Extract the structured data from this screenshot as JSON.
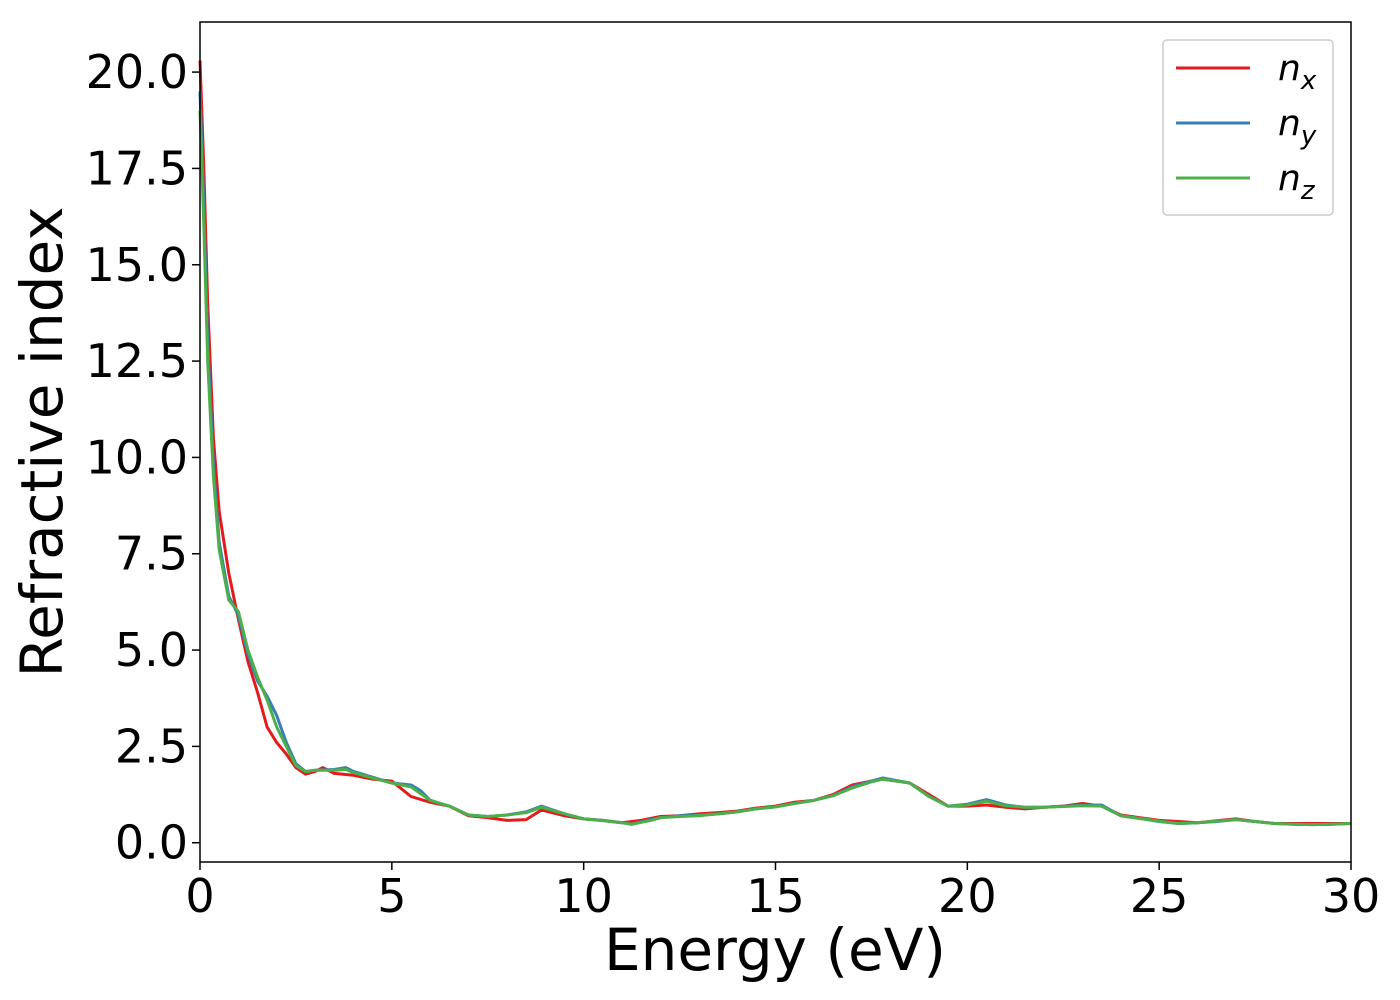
{
  "chart_data": {
    "type": "line",
    "xlabel": "Energy (eV)",
    "ylabel": "Refractive index",
    "xlim": [
      0,
      30
    ],
    "ylim": [
      -0.5,
      21.3
    ],
    "xticks": [
      0,
      5,
      10,
      15,
      20,
      25,
      30
    ],
    "xtick_labels": [
      "0",
      "5",
      "10",
      "15",
      "20",
      "25",
      "30"
    ],
    "yticks": [
      0,
      2.5,
      5,
      7.5,
      10,
      12.5,
      15,
      17.5,
      20
    ],
    "ytick_labels": [
      "0.0",
      "2.5",
      "5.0",
      "7.5",
      "10.0",
      "12.5",
      "15.0",
      "17.5",
      "20.0"
    ],
    "grid": false,
    "legend_position": "top-right",
    "series": [
      {
        "name": "n",
        "subscript": "x",
        "color": "#e41a1c",
        "points": [
          [
            0,
            20.3
          ],
          [
            0.1,
            17.5
          ],
          [
            0.2,
            14.0
          ],
          [
            0.35,
            10.5
          ],
          [
            0.5,
            8.6
          ],
          [
            0.75,
            7.0
          ],
          [
            1.0,
            5.8
          ],
          [
            1.25,
            4.7
          ],
          [
            1.5,
            3.9
          ],
          [
            1.75,
            3.0
          ],
          [
            2.0,
            2.6
          ],
          [
            2.25,
            2.3
          ],
          [
            2.5,
            1.95
          ],
          [
            2.75,
            1.78
          ],
          [
            3.0,
            1.85
          ],
          [
            3.2,
            1.95
          ],
          [
            3.5,
            1.8
          ],
          [
            4.0,
            1.75
          ],
          [
            4.5,
            1.65
          ],
          [
            5.0,
            1.6
          ],
          [
            5.5,
            1.2
          ],
          [
            6.0,
            1.05
          ],
          [
            6.5,
            0.95
          ],
          [
            7.0,
            0.7
          ],
          [
            7.5,
            0.65
          ],
          [
            8.0,
            0.58
          ],
          [
            8.5,
            0.6
          ],
          [
            8.9,
            0.85
          ],
          [
            9.5,
            0.7
          ],
          [
            10.0,
            0.62
          ],
          [
            10.5,
            0.58
          ],
          [
            11.0,
            0.52
          ],
          [
            11.5,
            0.58
          ],
          [
            12.0,
            0.68
          ],
          [
            12.5,
            0.7
          ],
          [
            13.0,
            0.75
          ],
          [
            13.5,
            0.78
          ],
          [
            14.0,
            0.82
          ],
          [
            14.5,
            0.9
          ],
          [
            15.0,
            0.95
          ],
          [
            15.5,
            1.05
          ],
          [
            16.0,
            1.1
          ],
          [
            16.5,
            1.25
          ],
          [
            17.0,
            1.5
          ],
          [
            17.5,
            1.6
          ],
          [
            17.8,
            1.65
          ],
          [
            18.5,
            1.55
          ],
          [
            19.0,
            1.25
          ],
          [
            19.5,
            0.95
          ],
          [
            20.0,
            0.95
          ],
          [
            20.5,
            0.98
          ],
          [
            21.0,
            0.92
          ],
          [
            21.5,
            0.88
          ],
          [
            22.0,
            0.92
          ],
          [
            22.5,
            0.95
          ],
          [
            23.0,
            1.02
          ],
          [
            23.5,
            0.95
          ],
          [
            24.0,
            0.72
          ],
          [
            24.5,
            0.65
          ],
          [
            25.0,
            0.58
          ],
          [
            25.5,
            0.55
          ],
          [
            26.0,
            0.52
          ],
          [
            26.5,
            0.57
          ],
          [
            27.0,
            0.62
          ],
          [
            27.5,
            0.55
          ],
          [
            28.0,
            0.5
          ],
          [
            28.5,
            0.5
          ],
          [
            29.0,
            0.5
          ],
          [
            29.5,
            0.5
          ],
          [
            30.0,
            0.5
          ]
        ]
      },
      {
        "name": "n",
        "subscript": "y",
        "color": "#377eb8",
        "points": [
          [
            0,
            19.5
          ],
          [
            0.1,
            16.5
          ],
          [
            0.2,
            13.0
          ],
          [
            0.35,
            9.8
          ],
          [
            0.5,
            7.8
          ],
          [
            0.75,
            6.4
          ],
          [
            1.0,
            5.9
          ],
          [
            1.25,
            4.9
          ],
          [
            1.5,
            4.2
          ],
          [
            1.75,
            3.8
          ],
          [
            2.0,
            3.3
          ],
          [
            2.25,
            2.6
          ],
          [
            2.5,
            2.05
          ],
          [
            2.75,
            1.85
          ],
          [
            3.0,
            1.88
          ],
          [
            3.5,
            1.9
          ],
          [
            3.8,
            1.95
          ],
          [
            4.0,
            1.85
          ],
          [
            4.5,
            1.7
          ],
          [
            5.0,
            1.55
          ],
          [
            5.5,
            1.5
          ],
          [
            5.75,
            1.35
          ],
          [
            6.0,
            1.1
          ],
          [
            6.5,
            0.95
          ],
          [
            7.0,
            0.72
          ],
          [
            7.5,
            0.68
          ],
          [
            8.0,
            0.72
          ],
          [
            8.5,
            0.8
          ],
          [
            8.9,
            0.95
          ],
          [
            9.5,
            0.75
          ],
          [
            10.0,
            0.62
          ],
          [
            10.5,
            0.58
          ],
          [
            11.0,
            0.52
          ],
          [
            11.25,
            0.48
          ],
          [
            11.75,
            0.6
          ],
          [
            12.0,
            0.65
          ],
          [
            12.5,
            0.7
          ],
          [
            13.0,
            0.72
          ],
          [
            13.5,
            0.75
          ],
          [
            14.0,
            0.8
          ],
          [
            14.5,
            0.88
          ],
          [
            15.0,
            0.93
          ],
          [
            15.5,
            1.02
          ],
          [
            16.0,
            1.1
          ],
          [
            16.5,
            1.22
          ],
          [
            17.0,
            1.45
          ],
          [
            17.5,
            1.6
          ],
          [
            17.8,
            1.68
          ],
          [
            18.5,
            1.55
          ],
          [
            19.0,
            1.2
          ],
          [
            19.5,
            0.95
          ],
          [
            20.0,
            1.0
          ],
          [
            20.5,
            1.12
          ],
          [
            21.0,
            0.98
          ],
          [
            21.5,
            0.92
          ],
          [
            22.0,
            0.92
          ],
          [
            22.5,
            0.95
          ],
          [
            23.0,
            0.97
          ],
          [
            23.5,
            0.98
          ],
          [
            24.0,
            0.7
          ],
          [
            24.5,
            0.63
          ],
          [
            25.0,
            0.55
          ],
          [
            25.5,
            0.5
          ],
          [
            26.0,
            0.52
          ],
          [
            26.5,
            0.55
          ],
          [
            27.0,
            0.6
          ],
          [
            27.5,
            0.55
          ],
          [
            28.0,
            0.5
          ],
          [
            28.5,
            0.48
          ],
          [
            29.0,
            0.47
          ],
          [
            29.5,
            0.48
          ],
          [
            30.0,
            0.5
          ]
        ]
      },
      {
        "name": "n",
        "subscript": "z",
        "color": "#4daf4a",
        "points": [
          [
            0,
            19.0
          ],
          [
            0.1,
            16.0
          ],
          [
            0.2,
            12.5
          ],
          [
            0.35,
            9.5
          ],
          [
            0.5,
            7.6
          ],
          [
            0.75,
            6.3
          ],
          [
            1.0,
            6.0
          ],
          [
            1.25,
            5.0
          ],
          [
            1.5,
            4.3
          ],
          [
            1.75,
            3.7
          ],
          [
            2.0,
            3.0
          ],
          [
            2.25,
            2.5
          ],
          [
            2.5,
            2.0
          ],
          [
            2.75,
            1.85
          ],
          [
            3.0,
            1.88
          ],
          [
            3.5,
            1.88
          ],
          [
            3.8,
            1.9
          ],
          [
            4.0,
            1.82
          ],
          [
            4.5,
            1.68
          ],
          [
            5.0,
            1.55
          ],
          [
            5.5,
            1.45
          ],
          [
            6.0,
            1.1
          ],
          [
            6.5,
            0.95
          ],
          [
            7.0,
            0.72
          ],
          [
            7.5,
            0.68
          ],
          [
            8.0,
            0.72
          ],
          [
            8.5,
            0.78
          ],
          [
            8.9,
            0.92
          ],
          [
            9.5,
            0.75
          ],
          [
            10.0,
            0.62
          ],
          [
            10.5,
            0.57
          ],
          [
            11.0,
            0.52
          ],
          [
            11.25,
            0.48
          ],
          [
            11.75,
            0.58
          ],
          [
            12.0,
            0.65
          ],
          [
            12.5,
            0.68
          ],
          [
            13.0,
            0.7
          ],
          [
            13.5,
            0.75
          ],
          [
            14.0,
            0.8
          ],
          [
            14.5,
            0.88
          ],
          [
            15.0,
            0.93
          ],
          [
            15.5,
            1.02
          ],
          [
            16.0,
            1.1
          ],
          [
            16.5,
            1.22
          ],
          [
            17.0,
            1.42
          ],
          [
            17.5,
            1.58
          ],
          [
            17.8,
            1.65
          ],
          [
            18.5,
            1.55
          ],
          [
            19.0,
            1.2
          ],
          [
            19.5,
            0.95
          ],
          [
            20.0,
            0.98
          ],
          [
            20.5,
            1.08
          ],
          [
            21.0,
            0.96
          ],
          [
            21.5,
            0.92
          ],
          [
            22.0,
            0.92
          ],
          [
            22.5,
            0.94
          ],
          [
            23.0,
            0.96
          ],
          [
            23.5,
            0.95
          ],
          [
            24.0,
            0.7
          ],
          [
            24.5,
            0.63
          ],
          [
            25.0,
            0.56
          ],
          [
            25.5,
            0.5
          ],
          [
            26.0,
            0.52
          ],
          [
            26.5,
            0.56
          ],
          [
            27.0,
            0.6
          ],
          [
            27.5,
            0.55
          ],
          [
            28.0,
            0.5
          ],
          [
            28.5,
            0.48
          ],
          [
            29.0,
            0.47
          ],
          [
            29.5,
            0.48
          ],
          [
            30.0,
            0.5
          ]
        ]
      }
    ]
  }
}
